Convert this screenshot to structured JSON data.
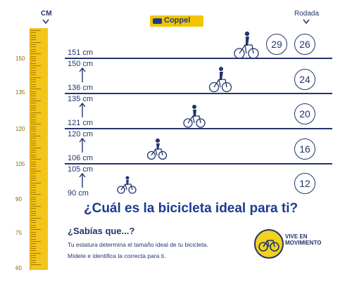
{
  "brand": {
    "name": "Coppel"
  },
  "ruler": {
    "unit_label": "CM",
    "labels": [
      "150",
      "135",
      "120",
      "105",
      "90",
      "75",
      "60"
    ]
  },
  "rodada_label": "Rodada",
  "bands": [
    {
      "top_text": "151  cm",
      "bottom_text": "",
      "wheels": [
        "29",
        "26"
      ]
    },
    {
      "top_text": "150 cm",
      "bottom_text": "136 cm",
      "wheels": [
        "24"
      ]
    },
    {
      "top_text": "135 cm",
      "bottom_text": "121 cm",
      "wheels": [
        "20"
      ]
    },
    {
      "top_text": "120 cm",
      "bottom_text": "106 cm",
      "wheels": [
        "16"
      ]
    },
    {
      "top_text": "105 cm",
      "bottom_text": "90  cm",
      "wheels": [
        "12"
      ]
    }
  ],
  "headline": "¿Cuál es la bicicleta ideal para ti?",
  "info": {
    "heading": "¿Sabías que...?",
    "line1": "Tu estatura determina el tamaño ideal de tu bicicleta.",
    "line2": "Mídete e identifica la correcta para ti."
  },
  "campaign": {
    "line1": "VIVE EN",
    "line2": "MOVIMIENTO"
  },
  "colors": {
    "navy": "#23356b",
    "yellow": "#f3c41a",
    "brand_blue": "#1b3b8f"
  },
  "icons": [
    "bicycle-icon",
    "rider-icon",
    "down-chevron-icon",
    "up-arrow-icon"
  ]
}
